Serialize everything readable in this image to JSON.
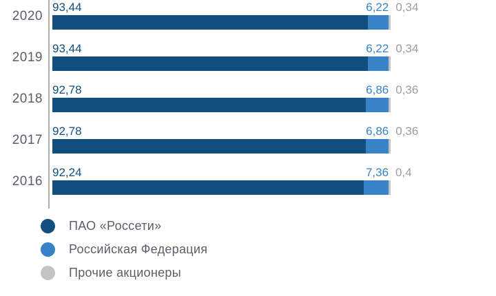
{
  "background_color": "#ffffff",
  "colors": {
    "rosseti": "#124f7e",
    "rf": "#3783c5",
    "other": "#c4c4c6",
    "axis": "#aeaeae",
    "year_text": "#5c5c68",
    "gray_value_text": "#9c9da3"
  },
  "chart_data": {
    "type": "bar",
    "orientation": "horizontal",
    "stacked": true,
    "grid": false,
    "legend_position": "bottom-left",
    "value_range_percent": [
      0,
      100
    ],
    "categories": [
      "2020",
      "2019",
      "2018",
      "2017",
      "2016"
    ],
    "series": [
      {
        "name": "ПАО «Россети»",
        "color": "#124f7e",
        "values": [
          93.44,
          93.44,
          92.78,
          92.78,
          92.24
        ]
      },
      {
        "name": "Российская Федерация",
        "color": "#3783c5",
        "values": [
          6.22,
          6.22,
          6.86,
          6.86,
          7.36
        ]
      },
      {
        "name": "Прочие акционеры",
        "color": "#c4c4c6",
        "values": [
          0.34,
          0.34,
          0.36,
          0.36,
          0.4
        ]
      }
    ],
    "rows": [
      {
        "year": "2020",
        "values": [
          93.44,
          6.22,
          0.34
        ],
        "labels": [
          "93,44",
          "6,22",
          "0,34"
        ]
      },
      {
        "year": "2019",
        "values": [
          93.44,
          6.22,
          0.34
        ],
        "labels": [
          "93,44",
          "6,22",
          "0,34"
        ]
      },
      {
        "year": "2018",
        "values": [
          92.78,
          6.86,
          0.36
        ],
        "labels": [
          "92,78",
          "6,86",
          "0,36"
        ]
      },
      {
        "year": "2017",
        "values": [
          92.78,
          6.86,
          0.36
        ],
        "labels": [
          "92,78",
          "6,86",
          "0,36"
        ]
      },
      {
        "year": "2016",
        "values": [
          92.24,
          7.36,
          0.4
        ],
        "labels": [
          "92,24",
          "7,36",
          "0,4"
        ]
      }
    ]
  },
  "legend": {
    "items": [
      {
        "label": "ПАО «Россети»",
        "color": "#124f7e"
      },
      {
        "label": "Российская Федерация",
        "color": "#3783c5"
      },
      {
        "label": "Прочие акционеры",
        "color": "#c4c4c6"
      }
    ]
  }
}
